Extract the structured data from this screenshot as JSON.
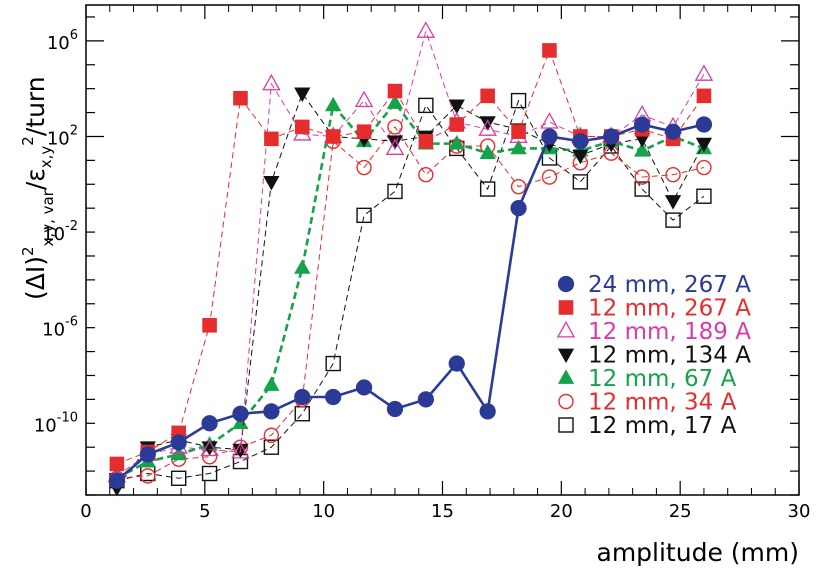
{
  "chart_data": {
    "type": "scatter",
    "xlabel": "amplitude (mm)",
    "ylabel_parts": [
      "(Δ",
      "I)",
      "2",
      "x,y, var",
      "/ε",
      "x,y",
      "2",
      "/turn"
    ],
    "xlim": [
      0,
      30
    ],
    "ylim_exp": [
      -13,
      7.5
    ],
    "y_scale": "log10",
    "x_ticks": [
      0,
      5,
      10,
      15,
      20,
      25,
      30
    ],
    "x_tick_labels": [
      "0",
      "5",
      "10",
      "15",
      "20",
      "25",
      "30"
    ],
    "y_tick_labels": [
      {
        "base": "10",
        "exp": "6",
        "pow": 6
      },
      {
        "base": "10",
        "exp": "2",
        "pow": 2
      },
      {
        "base": "10",
        "exp": "-2",
        "pow": -2
      },
      {
        "base": "10",
        "exp": "-6",
        "pow": -6
      },
      {
        "base": "10",
        "exp": "-10",
        "pow": -10
      }
    ],
    "grid": false,
    "legend_placement": "right-middle",
    "series": [
      {
        "name": "24 mm, 267 A",
        "color": "#2b3a96",
        "marker": "circle-filled",
        "line": "solid",
        "x": [
          1.3,
          2.6,
          3.9,
          5.2,
          6.5,
          7.8,
          9.1,
          10.4,
          11.7,
          13.0,
          14.3,
          15.6,
          16.9,
          18.2,
          19.5,
          20.8,
          22.1,
          23.4,
          24.7,
          26.0
        ],
        "log_y": [
          -12.4,
          -11.3,
          -10.8,
          -10.0,
          -9.6,
          -9.5,
          -8.9,
          -8.9,
          -8.5,
          -9.4,
          -9.0,
          -7.5,
          -9.5,
          -1.0,
          2.0,
          1.8,
          2.0,
          2.5,
          2.2,
          2.5
        ]
      },
      {
        "name": "12 mm, 267 A",
        "color": "#e52d2d",
        "marker": "square-filled",
        "line": "dashed",
        "x": [
          1.3,
          2.6,
          3.9,
          5.2,
          6.5,
          7.8,
          9.1,
          10.4,
          11.7,
          13.0,
          14.3,
          15.6,
          16.9,
          18.2,
          19.5,
          20.8,
          22.1,
          23.4,
          24.7,
          26.0
        ],
        "log_y": [
          -11.7,
          -11.2,
          -10.4,
          -5.9,
          3.6,
          1.9,
          2.4,
          2.0,
          2.2,
          3.9,
          1.8,
          2.5,
          3.7,
          2.2,
          5.6,
          2.0,
          2.0,
          2.3,
          1.9,
          3.7
        ]
      },
      {
        "name": "12 mm, 189 A",
        "color": "#d63cab",
        "marker": "triangle-open",
        "line": "dashed",
        "x": [
          1.3,
          2.6,
          3.9,
          5.2,
          6.5,
          7.8,
          9.1,
          10.4,
          11.7,
          13.0,
          14.3,
          15.6,
          16.9,
          18.2,
          19.5,
          20.8,
          22.1,
          23.4,
          24.7,
          26.0
        ],
        "log_y": [
          -12.2,
          -11.3,
          -11.0,
          -11.1,
          -11.2,
          4.2,
          2.1,
          2.0,
          3.5,
          1.5,
          6.4,
          2.6,
          2.3,
          2.0,
          2.6,
          2.0,
          2.0,
          2.9,
          2.4,
          4.6
        ]
      },
      {
        "name": "12 mm, 134 A",
        "color": "#111111",
        "marker": "triangle-down-filled",
        "line": "dashed",
        "x": [
          1.3,
          2.6,
          3.9,
          5.2,
          6.5,
          7.8,
          9.1,
          10.4,
          11.7,
          13.0,
          14.3,
          15.6,
          16.9,
          18.2,
          19.5,
          20.8,
          22.1,
          23.4,
          24.7,
          26.0
        ],
        "log_y": [
          -12.7,
          -11.0,
          -10.7,
          -11.0,
          -11.1,
          0.1,
          3.8,
          2.0,
          1.9,
          1.8,
          2.0,
          3.3,
          2.6,
          2.3,
          1.7,
          1.2,
          1.7,
          1.9,
          -0.7,
          1.7
        ]
      },
      {
        "name": "12 mm, 67 A",
        "color": "#15a24a",
        "marker": "triangle-filled",
        "line": "dashed-thick",
        "x": [
          1.3,
          2.6,
          3.9,
          5.2,
          6.5,
          7.8,
          9.1,
          10.4,
          11.7,
          13.0,
          14.3,
          15.6,
          16.9,
          18.2,
          19.5,
          20.8,
          22.1,
          23.4,
          24.7,
          26.0
        ],
        "log_y": [
          -12.3,
          -11.6,
          -11.3,
          -10.9,
          -10.0,
          -8.4,
          -3.5,
          3.3,
          1.8,
          3.4,
          1.7,
          1.7,
          1.3,
          1.5,
          1.5,
          1.4,
          1.8,
          1.4,
          2.0,
          1.5
        ]
      },
      {
        "name": "12 mm, 34 A",
        "color": "#e52d2d",
        "marker": "circle-open",
        "line": "dashed",
        "x": [
          1.3,
          2.6,
          3.9,
          5.2,
          6.5,
          7.8,
          9.1,
          10.4,
          11.7,
          13.0,
          14.3,
          15.6,
          16.9,
          18.2,
          19.5,
          20.8,
          22.1,
          23.4,
          24.7,
          26.0
        ],
        "log_y": [
          -12.3,
          -12.2,
          -11.5,
          -11.4,
          -11.0,
          -10.5,
          -9.0,
          1.8,
          0.7,
          2.4,
          0.4,
          1.6,
          1.6,
          -0.1,
          0.3,
          0.9,
          1.3,
          0.3,
          0.4,
          0.7
        ]
      },
      {
        "name": "12 mm, 17 A",
        "color": "#111111",
        "marker": "square-open",
        "line": "dashed",
        "x": [
          1.3,
          2.6,
          3.9,
          5.2,
          6.5,
          7.8,
          9.1,
          10.4,
          11.7,
          13.0,
          14.3,
          15.6,
          16.9,
          18.2,
          19.5,
          20.8,
          22.1,
          23.4,
          24.7,
          26.0
        ],
        "log_y": [
          -12.4,
          -12.1,
          -12.3,
          -12.1,
          -11.6,
          -11.0,
          -9.6,
          -7.5,
          -1.3,
          -0.3,
          3.3,
          1.5,
          -0.2,
          3.5,
          1.1,
          0.1,
          1.6,
          -0.2,
          -1.5,
          -0.5
        ]
      }
    ]
  }
}
